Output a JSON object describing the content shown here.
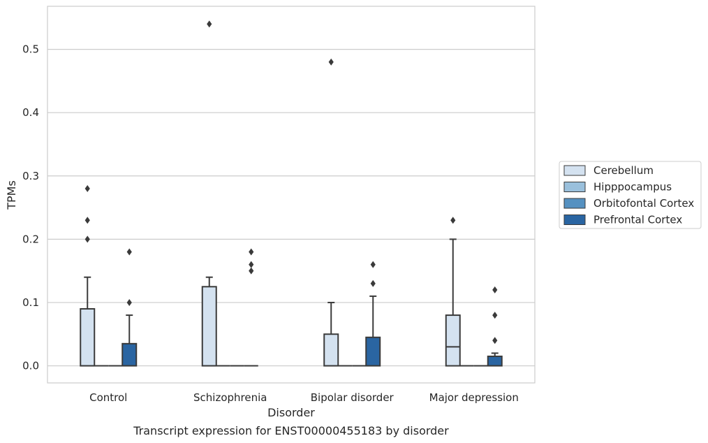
{
  "caption": "Transcript expression for ENST00000455183 by disorder",
  "chart_data": {
    "type": "box",
    "xlabel": "Disorder",
    "ylabel": "TPMs",
    "ylim": [
      -0.027,
      0.568
    ],
    "yticks": [
      0.0,
      0.1,
      0.2,
      0.3,
      0.4,
      0.5
    ],
    "ytick_labels": [
      "0.0",
      "0.1",
      "0.2",
      "0.3",
      "0.4",
      "0.5"
    ],
    "grid": "horizontal",
    "legend_placement": "center-right",
    "categories": [
      "Control",
      "Schizophrenia",
      "Bipolar disorder",
      "Major depression"
    ],
    "series": [
      {
        "name": "Cerebellum",
        "color": "#d4e2f0",
        "boxes": [
          {
            "q1": 0.0,
            "median": 0.0,
            "q3": 0.09,
            "whisker_low": 0.0,
            "whisker_high": 0.14,
            "outliers": [
              0.28,
              0.23,
              0.2
            ]
          },
          {
            "q1": 0.0,
            "median": 0.0,
            "q3": 0.125,
            "whisker_low": 0.0,
            "whisker_high": 0.14,
            "outliers": [
              0.54
            ]
          },
          {
            "q1": 0.0,
            "median": 0.0,
            "q3": 0.05,
            "whisker_low": 0.0,
            "whisker_high": 0.1,
            "outliers": [
              0.48
            ]
          },
          {
            "q1": 0.0,
            "median": 0.03,
            "q3": 0.08,
            "whisker_low": 0.0,
            "whisker_high": 0.2,
            "outliers": [
              0.23
            ]
          }
        ]
      },
      {
        "name": "Hipppocampus",
        "color": "#9ac0dc",
        "boxes": [
          {
            "q1": 0.0,
            "median": 0.0,
            "q3": 0.0,
            "whisker_low": 0.0,
            "whisker_high": 0.0,
            "outliers": []
          },
          {
            "q1": 0.0,
            "median": 0.0,
            "q3": 0.0,
            "whisker_low": 0.0,
            "whisker_high": 0.0,
            "outliers": []
          },
          {
            "q1": 0.0,
            "median": 0.0,
            "q3": 0.0,
            "whisker_low": 0.0,
            "whisker_high": 0.0,
            "outliers": []
          },
          {
            "q1": 0.0,
            "median": 0.0,
            "q3": 0.0,
            "whisker_low": 0.0,
            "whisker_high": 0.0,
            "outliers": []
          }
        ]
      },
      {
        "name": "Orbitofontal Cortex",
        "color": "#5591c1",
        "boxes": [
          {
            "q1": 0.0,
            "median": 0.0,
            "q3": 0.0,
            "whisker_low": 0.0,
            "whisker_high": 0.0,
            "outliers": []
          },
          {
            "q1": 0.0,
            "median": 0.0,
            "q3": 0.0,
            "whisker_low": 0.0,
            "whisker_high": 0.0,
            "outliers": []
          },
          {
            "q1": 0.0,
            "median": 0.0,
            "q3": 0.0,
            "whisker_low": 0.0,
            "whisker_high": 0.0,
            "outliers": []
          },
          {
            "q1": 0.0,
            "median": 0.0,
            "q3": 0.0,
            "whisker_low": 0.0,
            "whisker_high": 0.0,
            "outliers": []
          }
        ]
      },
      {
        "name": "Prefrontal Cortex",
        "color": "#2a65a2",
        "boxes": [
          {
            "q1": 0.0,
            "median": 0.0,
            "q3": 0.035,
            "whisker_low": 0.0,
            "whisker_high": 0.08,
            "outliers": [
              0.18,
              0.1
            ]
          },
          {
            "q1": 0.0,
            "median": 0.0,
            "q3": 0.0,
            "whisker_low": 0.0,
            "whisker_high": 0.0,
            "outliers": [
              0.18,
              0.16,
              0.15
            ]
          },
          {
            "q1": 0.0,
            "median": 0.0,
            "q3": 0.045,
            "whisker_low": 0.0,
            "whisker_high": 0.11,
            "outliers": [
              0.16,
              0.13
            ]
          },
          {
            "q1": 0.0,
            "median": 0.0,
            "q3": 0.015,
            "whisker_low": 0.0,
            "whisker_high": 0.02,
            "outliers": [
              0.12,
              0.08,
              0.04
            ]
          }
        ]
      }
    ]
  }
}
